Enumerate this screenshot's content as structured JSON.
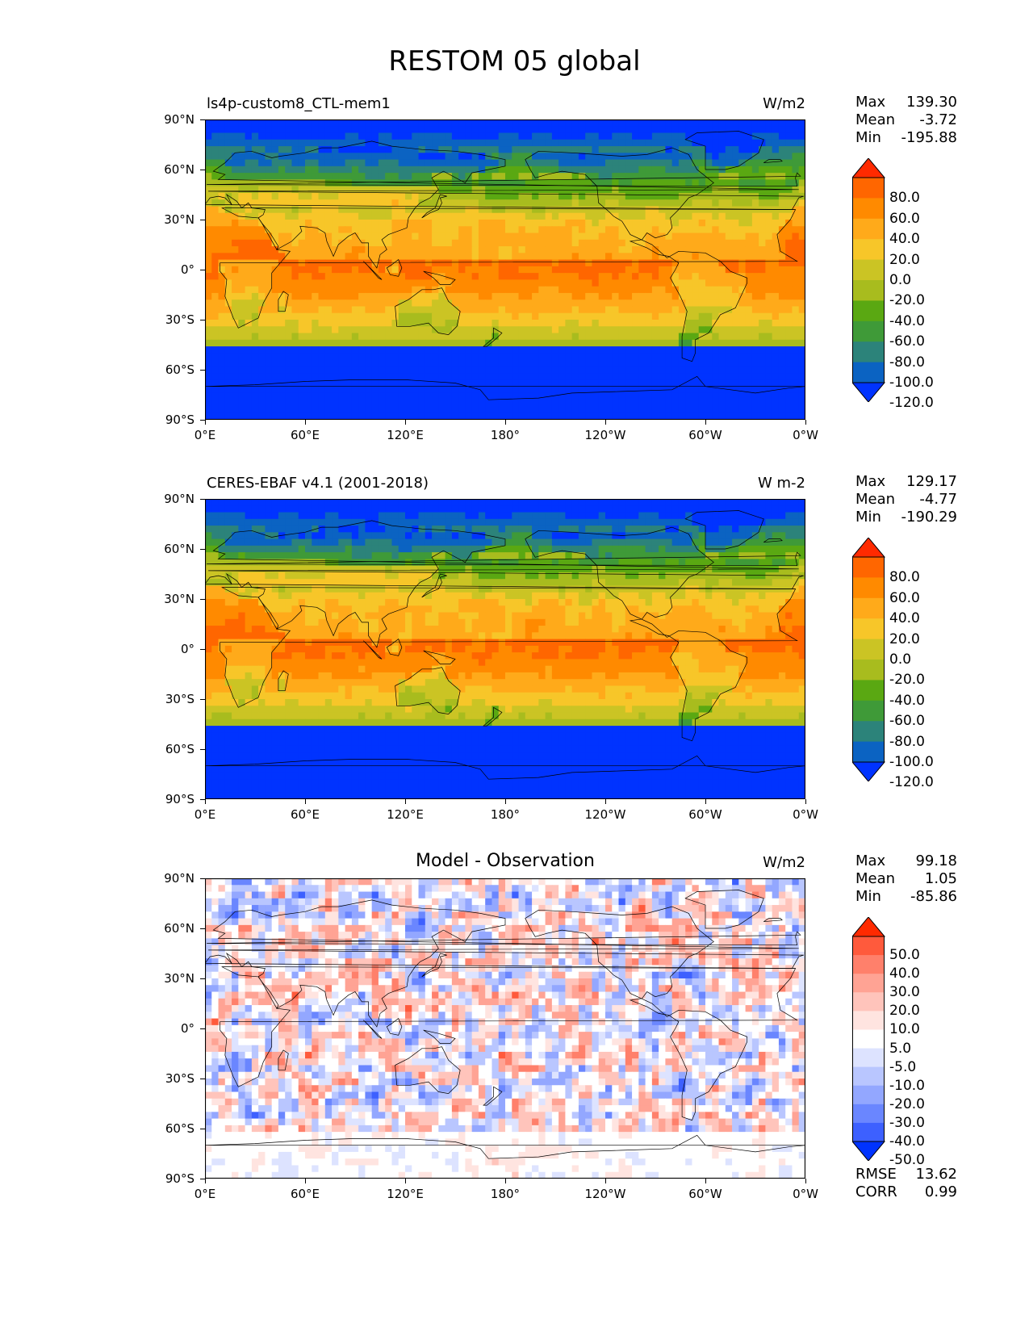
{
  "figure": {
    "title": "RESTOM 05 global"
  },
  "axes": {
    "lat_labels": [
      "90°N",
      "60°N",
      "30°N",
      "0°",
      "30°S",
      "60°S",
      "90°S"
    ],
    "lon_labels": [
      "0°E",
      "60°E",
      "120°E",
      "180°",
      "120°W",
      "60°W",
      "0°W"
    ]
  },
  "panels": [
    {
      "left_title": "ls4p-custom8_CTL-mem1",
      "center_title": "",
      "units": "W/m2",
      "stats": [
        {
          "label": "Max",
          "value": "139.30"
        },
        {
          "label": "Mean",
          "value": "-3.72"
        },
        {
          "label": "Min",
          "value": "-195.88"
        }
      ],
      "colorbar": {
        "labels": [
          "80.0",
          "60.0",
          "40.0",
          "20.0",
          "0.0",
          "-20.0",
          "-40.0",
          "-60.0",
          "-80.0",
          "-100.0",
          "-120.0"
        ],
        "colors": [
          "#ff2a00",
          "#ff6600",
          "#ff8a00",
          "#ffaa1a",
          "#f7c629",
          "#cbc424",
          "#a8bc1e",
          "#5aa812",
          "#3f9a38",
          "#2c837a",
          "#0b63c2",
          "#0033ff"
        ]
      }
    },
    {
      "left_title": "CERES-EBAF v4.1 (2001-2018)",
      "center_title": "",
      "units": "W m-2",
      "stats": [
        {
          "label": "Max",
          "value": "129.17"
        },
        {
          "label": "Mean",
          "value": "-4.77"
        },
        {
          "label": "Min",
          "value": "-190.29"
        }
      ],
      "colorbar": {
        "labels": [
          "80.0",
          "60.0",
          "40.0",
          "20.0",
          "0.0",
          "-20.0",
          "-40.0",
          "-60.0",
          "-80.0",
          "-100.0",
          "-120.0"
        ],
        "colors": [
          "#ff2a00",
          "#ff6600",
          "#ff8a00",
          "#ffaa1a",
          "#f7c629",
          "#cbc424",
          "#a8bc1e",
          "#5aa812",
          "#3f9a38",
          "#2c837a",
          "#0b63c2",
          "#0033ff"
        ]
      }
    },
    {
      "left_title": "",
      "center_title": "Model - Observation",
      "units": "W/m2",
      "stats": [
        {
          "label": "Max",
          "value": "99.18"
        },
        {
          "label": "Mean",
          "value": "1.05"
        },
        {
          "label": "Min",
          "value": "-85.86"
        }
      ],
      "colorbar": {
        "labels": [
          "50.0",
          "40.0",
          "30.0",
          "20.0",
          "10.0",
          "5.0",
          "-5.0",
          "-10.0",
          "-20.0",
          "-30.0",
          "-40.0",
          "-50.0"
        ],
        "colors": [
          "#ff2a00",
          "#ff5a3c",
          "#ff806b",
          "#ffa394",
          "#ffc4bb",
          "#ffe4e0",
          "#ffffff",
          "#dde3ff",
          "#b9c6ff",
          "#93a7ff",
          "#6a86ff",
          "#3d60ff",
          "#0033ff"
        ]
      },
      "bottom_stats": [
        {
          "label": "RMSE",
          "value": "13.62"
        },
        {
          "label": "CORR",
          "value": "0.99"
        }
      ]
    }
  ]
}
